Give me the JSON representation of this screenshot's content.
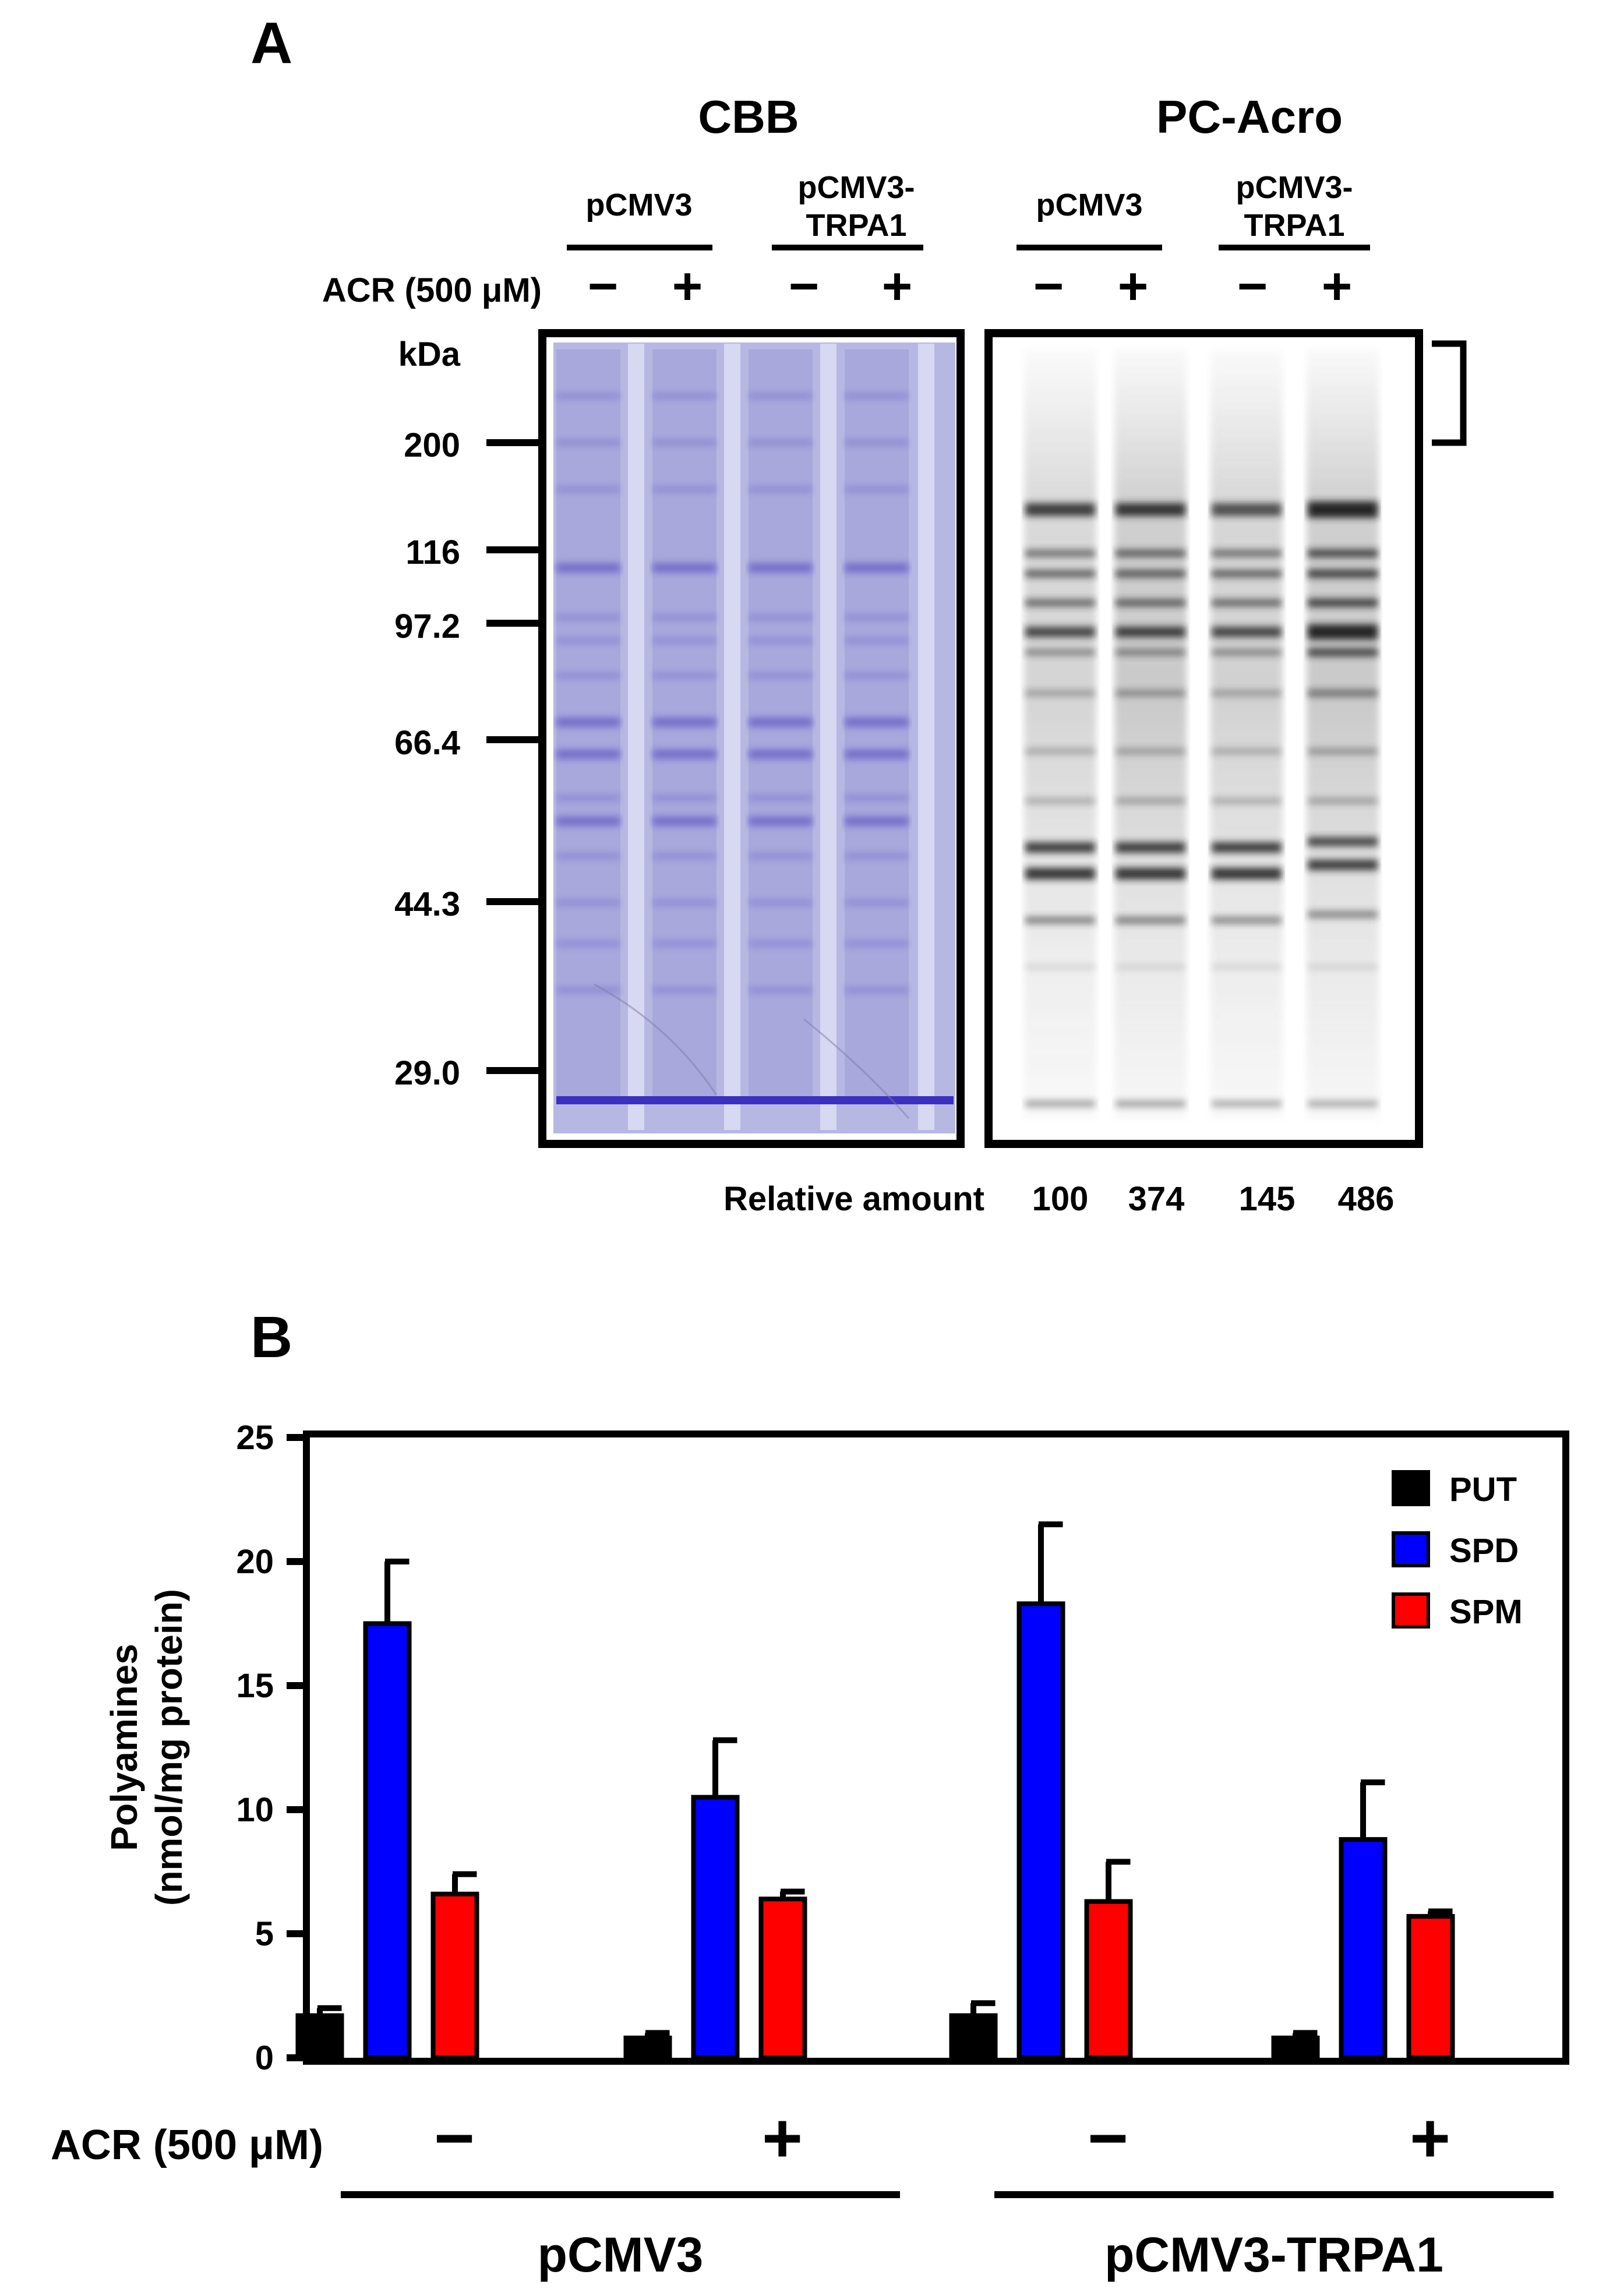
{
  "panel_a": {
    "label": "A",
    "cbb_title": "CBB",
    "pcacro_title": "PC-Acro",
    "groups": [
      {
        "line1": "pCMV3",
        "line2": ""
      },
      {
        "line1": "pCMV3-",
        "line2": "TRPA1"
      },
      {
        "line1": "pCMV3",
        "line2": ""
      },
      {
        "line1": "pCMV3-",
        "line2": "TRPA1"
      }
    ],
    "acr_label": "ACR (500 μM)",
    "treatments": [
      "−",
      "+",
      "−",
      "+",
      "−",
      "+",
      "−",
      "+"
    ],
    "kda_label": "kDa",
    "markers": [
      "200",
      "116",
      "97.2",
      "66.4",
      "44.3",
      "29.0"
    ],
    "relative_label": "Relative amount",
    "relative_values": [
      "100",
      "374",
      "145",
      "486"
    ],
    "colors": {
      "cbb_background": "#b6b8e2",
      "cbb_band": "#6a63c4",
      "blot_band": "#202020"
    }
  },
  "panel_b": {
    "label": "B",
    "acr_label": "ACR (500 μM)",
    "treatments": [
      "−",
      "+",
      "−",
      "+"
    ],
    "group_labels": [
      "pCMV3",
      "pCMV3-TRPA1"
    ]
  },
  "chart_data": {
    "type": "bar",
    "title": "",
    "xlabel": "",
    "ylabel_line1": "Polyamines",
    "ylabel_line2": "(nmol/mg protein)",
    "ylim": [
      0,
      25
    ],
    "yticks": [
      "0",
      "5",
      "10",
      "15",
      "20",
      "25"
    ],
    "categories": [
      "pCMV3 −",
      "pCMV3 +",
      "pCMV3-TRPA1 −",
      "pCMV3-TRPA1 +"
    ],
    "series": [
      {
        "name": "PUT",
        "color": "#000000",
        "values": [
          1.7,
          0.8,
          1.7,
          0.8
        ],
        "errors": [
          0.3,
          0.2,
          0.5,
          0.2
        ]
      },
      {
        "name": "SPD",
        "color": "#0000ff",
        "values": [
          17.5,
          10.5,
          18.3,
          8.8
        ],
        "errors": [
          2.5,
          2.3,
          3.2,
          2.3
        ]
      },
      {
        "name": "SPM",
        "color": "#ff0000",
        "values": [
          6.6,
          6.4,
          6.3,
          5.7
        ],
        "errors": [
          0.8,
          0.3,
          1.6,
          0.2
        ]
      }
    ],
    "legend": "top-right"
  }
}
